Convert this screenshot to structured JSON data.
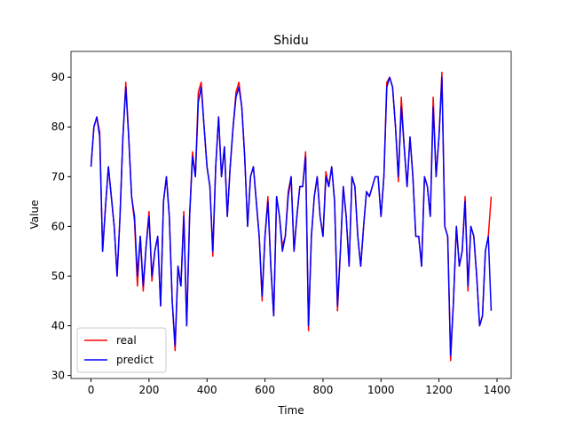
{
  "chart_data": {
    "type": "line",
    "title": "Shidu",
    "x_label": "Time",
    "y_label": "Value",
    "x": [
      0,
      10,
      20,
      30,
      40,
      50,
      60,
      70,
      80,
      90,
      100,
      110,
      120,
      130,
      140,
      150,
      160,
      170,
      180,
      190,
      200,
      210,
      220,
      230,
      240,
      250,
      260,
      270,
      280,
      290,
      300,
      310,
      320,
      330,
      340,
      350,
      360,
      370,
      380,
      390,
      400,
      410,
      420,
      430,
      440,
      450,
      460,
      470,
      480,
      490,
      500,
      510,
      520,
      530,
      540,
      550,
      560,
      570,
      580,
      590,
      600,
      610,
      620,
      630,
      640,
      650,
      660,
      670,
      680,
      690,
      700,
      710,
      720,
      730,
      740,
      750,
      760,
      770,
      780,
      790,
      800,
      810,
      820,
      830,
      840,
      850,
      860,
      870,
      880,
      890,
      900,
      910,
      920,
      930,
      940,
      950,
      960,
      970,
      980,
      990,
      1000,
      1010,
      1020,
      1030,
      1040,
      1050,
      1060,
      1070,
      1080,
      1090,
      1100,
      1110,
      1120,
      1130,
      1140,
      1150,
      1160,
      1170,
      1180,
      1190,
      1200,
      1210,
      1220,
      1230,
      1240,
      1250,
      1260,
      1270,
      1280,
      1290,
      1300,
      1310,
      1320,
      1330,
      1340,
      1350,
      1360,
      1370,
      1380
    ],
    "series": [
      {
        "name": "real",
        "color": "#ff0000",
        "values": [
          72,
          80,
          82,
          79,
          55,
          64,
          72,
          66,
          60,
          50,
          62,
          78,
          89,
          78,
          66,
          61,
          48,
          58,
          47,
          56,
          63,
          49,
          55,
          58,
          44,
          65,
          70,
          62,
          45,
          35,
          52,
          48,
          63,
          40,
          62,
          75,
          70,
          87,
          89,
          80,
          72,
          68,
          54,
          72,
          82,
          70,
          76,
          62,
          72,
          80,
          87,
          89,
          84,
          74,
          60,
          70,
          72,
          65,
          58,
          45,
          58,
          66,
          52,
          42,
          66,
          62,
          56,
          58,
          67,
          70,
          55,
          62,
          68,
          68,
          75,
          39,
          58,
          66,
          70,
          62,
          58,
          71,
          68,
          72,
          65,
          43,
          55,
          68,
          62,
          52,
          70,
          68,
          58,
          52,
          60,
          67,
          66,
          68,
          70,
          70,
          62,
          70,
          89,
          90,
          88,
          80,
          69,
          86,
          76,
          68,
          78,
          70,
          58,
          58,
          52,
          70,
          68,
          62,
          86,
          70,
          78,
          91,
          60,
          58,
          33,
          45,
          60,
          52,
          55,
          66,
          47,
          60,
          58,
          50,
          40,
          42,
          55,
          58,
          66
        ]
      },
      {
        "name": "predict",
        "color": "#0000ff",
        "values": [
          72,
          80,
          82,
          78,
          55,
          64,
          72,
          66,
          60,
          50,
          62,
          78,
          88,
          78,
          66,
          62,
          50,
          58,
          48,
          56,
          62,
          50,
          55,
          58,
          44,
          65,
          70,
          62,
          45,
          36,
          52,
          48,
          62,
          40,
          62,
          74,
          70,
          85,
          88,
          80,
          72,
          68,
          55,
          72,
          82,
          70,
          76,
          62,
          72,
          80,
          86,
          88,
          84,
          74,
          60,
          70,
          72,
          65,
          58,
          46,
          58,
          65,
          52,
          42,
          66,
          62,
          55,
          58,
          66,
          70,
          55,
          62,
          68,
          68,
          74,
          40,
          58,
          66,
          70,
          62,
          58,
          70,
          68,
          72,
          65,
          44,
          55,
          68,
          62,
          52,
          70,
          68,
          58,
          52,
          60,
          67,
          66,
          68,
          70,
          70,
          62,
          70,
          88,
          90,
          88,
          80,
          70,
          84,
          76,
          68,
          78,
          70,
          58,
          58,
          52,
          70,
          68,
          62,
          84,
          70,
          78,
          90,
          60,
          58,
          34,
          45,
          60,
          52,
          55,
          65,
          48,
          60,
          58,
          50,
          40,
          42,
          55,
          58,
          43
        ]
      }
    ],
    "xlim": [
      -69,
      1449
    ],
    "ylim": [
      29.4,
      95.2
    ],
    "xticks": [
      0,
      200,
      400,
      600,
      800,
      1000,
      1200,
      1400
    ],
    "yticks": [
      30,
      40,
      50,
      60,
      70,
      80,
      90
    ],
    "legend": "lower left"
  }
}
